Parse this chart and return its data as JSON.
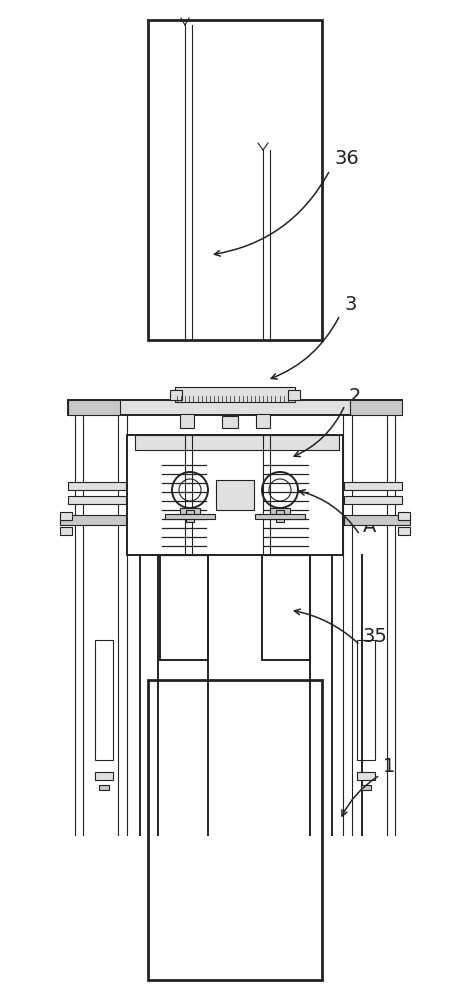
{
  "bg_color": "#ffffff",
  "lc": "#222222",
  "fc_white": "#ffffff",
  "fc_light": "#f5f5f5",
  "fc_mid": "#e0e0e0",
  "fc_dark": "#c8c8c8",
  "lw_thick": 2.0,
  "lw_main": 1.4,
  "lw_thin": 0.8,
  "lw_hair": 0.5
}
